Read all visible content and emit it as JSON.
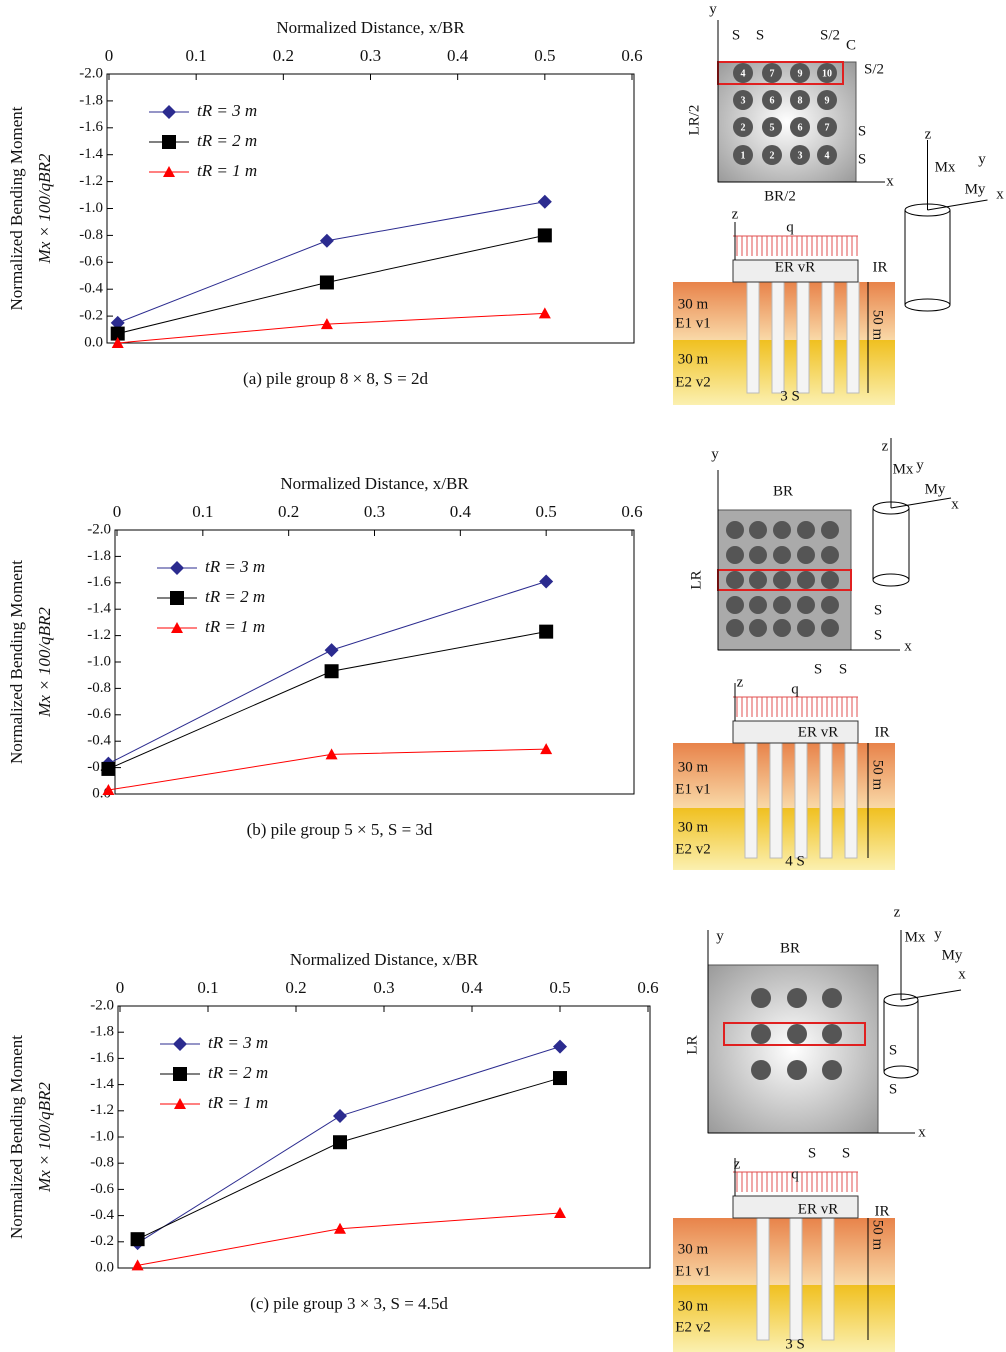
{
  "chart_data": [
    {
      "type": "line",
      "title": "Normalized Distance, x/BR",
      "y_label": [
        "Normalized Bending Moment",
        "Mx × 100/qBR2"
      ],
      "caption": "(a) pile group 8 × 8, S = 2d",
      "xlim": [
        0,
        0.6
      ],
      "xticks": [
        0,
        0.1,
        0.2,
        0.3,
        0.4,
        0.5,
        0.6
      ],
      "ylim": [
        0,
        -2
      ],
      "yticks": [
        {
          "value": -2,
          "label": "-2.0"
        },
        {
          "value": -1.8,
          "label": "-1.8"
        },
        {
          "value": -1.6,
          "label": "-1.6"
        },
        {
          "value": -1.4,
          "label": "-1.4"
        },
        {
          "value": -1.2,
          "label": "-1.2"
        },
        {
          "value": -1,
          "label": "-1.0"
        },
        {
          "value": -0.8,
          "label": "-0.8"
        },
        {
          "value": -0.6,
          "label": "-0.6"
        },
        {
          "value": -0.4,
          "label": "-0.4"
        },
        {
          "value": -0.2,
          "label": "-0.2"
        },
        {
          "value": 0,
          "label": "0.0"
        }
      ],
      "series": [
        {
          "name": "tR = 3 m",
          "color": "#2b2b8f",
          "marker": "diamond",
          "x": [
            0.01,
            0.25,
            0.5
          ],
          "values": [
            -0.15,
            -0.76,
            -1.05
          ]
        },
        {
          "name": "tR = 2 m",
          "color": "#000000",
          "marker": "square",
          "x": [
            0.01,
            0.25,
            0.5
          ],
          "values": [
            -0.07,
            -0.45,
            -0.8
          ]
        },
        {
          "name": "tR = 1 m",
          "color": "#ff0000",
          "marker": "triangle",
          "x": [
            0.01,
            0.25,
            0.5
          ],
          "values": [
            0,
            -0.14,
            -0.22
          ]
        }
      ]
    },
    {
      "type": "line",
      "title": "Normalized Distance, x/BR",
      "y_label": [
        "Normalized Bending Moment",
        "Mx × 100/qBR2"
      ],
      "caption": "(b) pile group 5 × 5, S = 3d",
      "xlim": [
        0,
        0.6
      ],
      "xticks": [
        0,
        0.1,
        0.2,
        0.3,
        0.4,
        0.5,
        0.6
      ],
      "ylim": [
        0,
        -2
      ],
      "yticks": [
        {
          "value": -2,
          "label": "-2.0"
        },
        {
          "value": -1.8,
          "label": "-1.8"
        },
        {
          "value": -1.6,
          "label": "-1.6"
        },
        {
          "value": -1.4,
          "label": "-1.4"
        },
        {
          "value": -1.2,
          "label": "-1.2"
        },
        {
          "value": -1,
          "label": "-1.0"
        },
        {
          "value": -0.8,
          "label": "-0.8"
        },
        {
          "value": -0.6,
          "label": "-0.6"
        },
        {
          "value": -0.4,
          "label": "-0.4"
        },
        {
          "value": -0.2,
          "label": "-0.2"
        },
        {
          "value": 0,
          "label": "0.0"
        }
      ],
      "series": [
        {
          "name": "tR = 3 m",
          "color": "#2b2b8f",
          "marker": "diamond",
          "x": [
            -0.01,
            0.25,
            0.5
          ],
          "values": [
            -0.23,
            -1.09,
            -1.61
          ]
        },
        {
          "name": "tR = 2 m",
          "color": "#000000",
          "marker": "square",
          "x": [
            -0.01,
            0.25,
            0.5
          ],
          "values": [
            -0.19,
            -0.93,
            -1.23
          ]
        },
        {
          "name": "tR = 1 m",
          "color": "#ff0000",
          "marker": "triangle",
          "x": [
            -0.01,
            0.25,
            0.5
          ],
          "values": [
            -0.03,
            -0.3,
            -0.34
          ]
        }
      ]
    },
    {
      "type": "line",
      "title": "Normalized Distance, x/BR",
      "y_label": [
        "Normalized Bending Moment",
        "Mx × 100/qBR2"
      ],
      "caption": "(c) pile group 3 × 3, S = 4.5d",
      "xlim": [
        0,
        0.6
      ],
      "xticks": [
        0,
        0.1,
        0.2,
        0.3,
        0.4,
        0.5,
        0.6
      ],
      "ylim": [
        0,
        -2
      ],
      "yticks": [
        {
          "value": -2,
          "label": "-2.0"
        },
        {
          "value": -1.8,
          "label": "-1.8"
        },
        {
          "value": -1.6,
          "label": "-1.6"
        },
        {
          "value": -1.4,
          "label": "-1.4"
        },
        {
          "value": -1.2,
          "label": "-1.2"
        },
        {
          "value": -1,
          "label": "-1.0"
        },
        {
          "value": -0.8,
          "label": "-0.8"
        },
        {
          "value": -0.6,
          "label": "-0.6"
        },
        {
          "value": -0.4,
          "label": "-0.4"
        },
        {
          "value": -0.2,
          "label": "-0.2"
        },
        {
          "value": 0,
          "label": "0.0"
        }
      ],
      "series": [
        {
          "name": "tR = 3 m",
          "color": "#2b2b8f",
          "marker": "diamond",
          "x": [
            0.02,
            0.25,
            0.5
          ],
          "values": [
            -0.19,
            -1.16,
            -1.69
          ]
        },
        {
          "name": "tR = 2 m",
          "color": "#000000",
          "marker": "square",
          "x": [
            0.02,
            0.25,
            0.5
          ],
          "values": [
            -0.22,
            -0.96,
            -1.45
          ]
        },
        {
          "name": "tR = 1 m",
          "color": "#ff0000",
          "marker": "triangle",
          "x": [
            0.02,
            0.25,
            0.5
          ],
          "values": [
            -0.02,
            -0.3,
            -0.42
          ]
        }
      ]
    }
  ],
  "diagrams": [
    {
      "labels": [
        "y",
        "S",
        "S",
        "S/2",
        "C",
        "S/2",
        "LR/2",
        "BR/2",
        "x",
        "S",
        "S",
        "z",
        "q",
        "ER vR",
        "IR",
        "30 m",
        "E1 v1",
        "30 m",
        "E2 v2",
        "50 m",
        "3 S",
        "z",
        "Mx",
        "y",
        "My",
        "x"
      ],
      "pile_numbers": [
        "4",
        "7",
        "9",
        "10",
        "3",
        "6",
        "8",
        "9",
        "2",
        "5",
        "6",
        "7",
        "1",
        "2",
        "3",
        "4"
      ]
    },
    {
      "labels": [
        "y",
        "BR",
        "LR",
        "S",
        "S",
        "x",
        "S",
        "S",
        "z",
        "Mx",
        "y",
        "My",
        "x",
        "z",
        "q",
        "ER vR",
        "IR",
        "30 m",
        "E1 v1",
        "30 m",
        "E2 v2",
        "50 m",
        "4 S"
      ]
    },
    {
      "labels": [
        "y",
        "BR",
        "LR",
        "S",
        "S",
        "x",
        "S",
        "S",
        "z",
        "Mx",
        "y",
        "My",
        "x",
        "z",
        "q",
        "ER vR",
        "IR",
        "30 m",
        "E1 v1",
        "30 m",
        "E2 v2",
        "50 m",
        "3 S"
      ]
    }
  ]
}
